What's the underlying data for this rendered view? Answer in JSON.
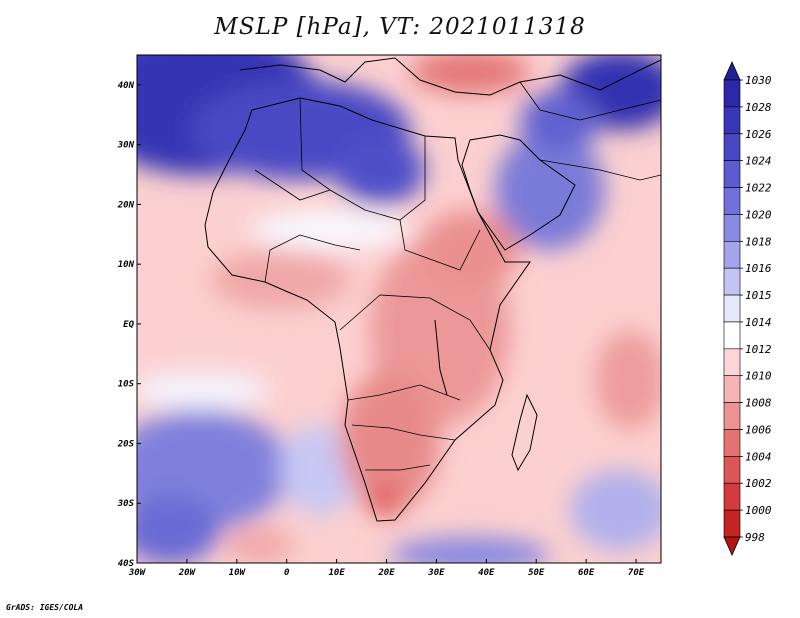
{
  "chart_data": {
    "type": "heatmap",
    "title": "MSLP [hPa], VT: 2021011318",
    "variable": "MSLP",
    "units": "hPa",
    "valid_time": "2021011318",
    "x_ticks": [
      "30W",
      "20W",
      "10W",
      "0",
      "10E",
      "20E",
      "30E",
      "40E",
      "50E",
      "60E",
      "70E"
    ],
    "x_values": [
      -30,
      -20,
      -10,
      0,
      10,
      20,
      30,
      40,
      50,
      60,
      70
    ],
    "y_ticks": [
      "40N",
      "30N",
      "20N",
      "10N",
      "EQ",
      "10S",
      "20S",
      "30S",
      "40S"
    ],
    "y_values": [
      40,
      30,
      20,
      10,
      0,
      -10,
      -20,
      -30,
      -40
    ],
    "xlim": [
      -30,
      75
    ],
    "ylim": [
      -40,
      45
    ],
    "colorbar_levels": [
      "1030",
      "1028",
      "1026",
      "1024",
      "1022",
      "1020",
      "1018",
      "1016",
      "1015",
      "1014",
      "1012",
      "1010",
      "1008",
      "1006",
      "1004",
      "1002",
      "1000",
      "998"
    ],
    "colorbar_colors": [
      "#20209a",
      "#2a2aa8",
      "#3636b8",
      "#4848c4",
      "#5c5cd0",
      "#7070dc",
      "#8a8ae4",
      "#a4a4ec",
      "#c4c4f4",
      "#e8e8fc",
      "#ffffff",
      "#fcd6d6",
      "#f4b4b4",
      "#ec9292",
      "#e47272",
      "#dc5656",
      "#d23c3c",
      "#c42424",
      "#b41414"
    ]
  },
  "credit": "GrADS: IGES/COLA"
}
